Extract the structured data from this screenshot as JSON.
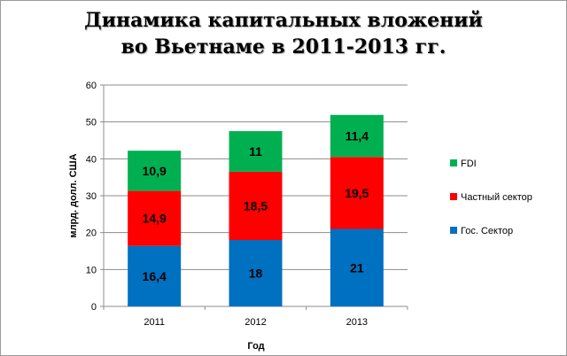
{
  "chart_data": {
    "type": "bar",
    "stacked": true,
    "title_line1": "Динамика капитальных вложений",
    "title_line2": "во Вьетнаме в 2011-2013 гг.",
    "xlabel": "Год",
    "ylabel": "млрд. долл. США",
    "ylim": [
      0,
      60
    ],
    "yticks": [
      "0",
      "10",
      "20",
      "30",
      "40",
      "50",
      "60"
    ],
    "grid": true,
    "legend_position": "right",
    "categories": [
      "2011",
      "2012",
      "2013"
    ],
    "series": [
      {
        "name": "Гос. Сектор",
        "values": [
          16.4,
          18,
          21
        ],
        "labels": [
          "16,4",
          "18",
          "21"
        ],
        "color": "#0070C0"
      },
      {
        "name": "Частный сектор",
        "values": [
          14.9,
          18.5,
          19.5
        ],
        "labels": [
          "14,9",
          "18,5",
          "19,5"
        ],
        "color": "#FF0000"
      },
      {
        "name": "FDI",
        "values": [
          10.9,
          11,
          11.4
        ],
        "labels": [
          "10,9",
          "11",
          "11,4"
        ],
        "color": "#00B050"
      }
    ]
  }
}
